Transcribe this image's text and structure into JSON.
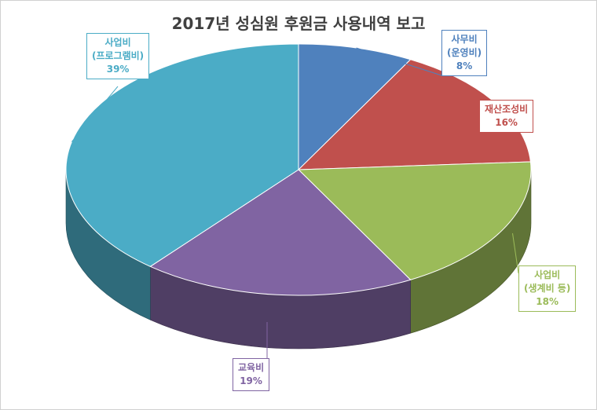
{
  "chart_data": {
    "type": "pie",
    "title": "2017년 성심원 후원금 사용내역 보고",
    "slices": [
      {
        "key": "office",
        "label": [
          "사무비",
          "(운영비)"
        ],
        "value": 8,
        "pct": "8%",
        "color": "#4f81bd"
      },
      {
        "key": "property",
        "label": [
          "재산조성비"
        ],
        "value": 16,
        "pct": "16%",
        "color": "#c0504d"
      },
      {
        "key": "business",
        "label": [
          "사업비",
          "(생계비 등)"
        ],
        "value": 18,
        "pct": "18%",
        "color": "#9bbb59"
      },
      {
        "key": "education",
        "label": [
          "교육비"
        ],
        "value": 19,
        "pct": "19%",
        "color": "#8064a2"
      },
      {
        "key": "program",
        "label": [
          "사업비",
          "(프로그램비)"
        ],
        "value": 39,
        "pct": "39%",
        "color": "#4bacc6"
      }
    ]
  }
}
